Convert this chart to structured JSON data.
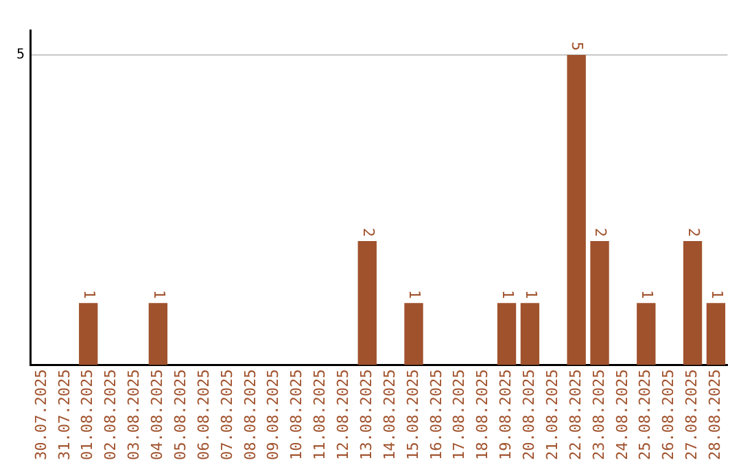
{
  "chart_data": {
    "type": "bar",
    "categories": [
      "30.07.2025",
      "31.07.2025",
      "01.08.2025",
      "02.08.2025",
      "03.08.2025",
      "04.08.2025",
      "05.08.2025",
      "06.08.2025",
      "07.08.2025",
      "08.08.2025",
      "09.08.2025",
      "10.08.2025",
      "11.08.2025",
      "12.08.2025",
      "13.08.2025",
      "14.08.2025",
      "15.08.2025",
      "16.08.2025",
      "17.08.2025",
      "18.08.2025",
      "19.08.2025",
      "20.08.2025",
      "21.08.2025",
      "22.08.2025",
      "23.08.2025",
      "24.08.2025",
      "25.08.2025",
      "26.08.2025",
      "27.08.2025",
      "28.08.2025"
    ],
    "values": [
      0,
      0,
      1,
      0,
      0,
      1,
      0,
      0,
      0,
      0,
      0,
      0,
      0,
      0,
      2,
      0,
      1,
      0,
      0,
      0,
      1,
      1,
      0,
      5,
      2,
      0,
      1,
      0,
      2,
      1
    ],
    "value_labels": [
      null,
      null,
      "1",
      null,
      null,
      "1",
      null,
      null,
      null,
      null,
      null,
      null,
      null,
      null,
      "2",
      null,
      "1",
      null,
      null,
      null,
      "1",
      "1",
      null,
      "5",
      "2",
      null,
      "1",
      null,
      "2",
      "1"
    ],
    "color": "#a0522d",
    "ylim": [
      0,
      5.4
    ],
    "yticks": [
      5
    ],
    "grid": "y",
    "legend": false
  }
}
